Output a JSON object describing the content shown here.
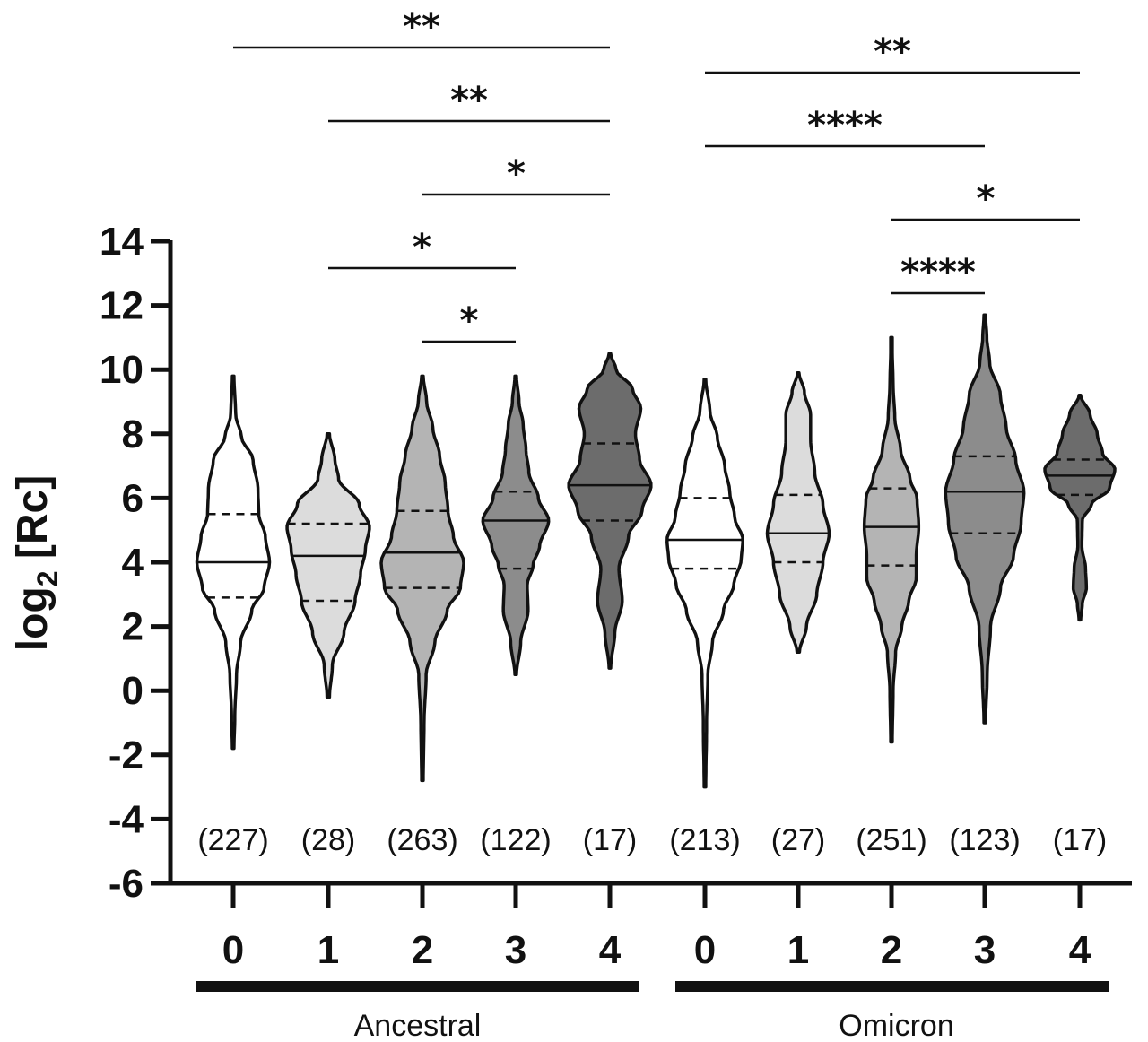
{
  "chart_data": {
    "type": "violin",
    "ylabel": "log",
    "ylabel_sub": "2",
    "ylabel_suffix": " [Rc]",
    "ylim": [
      -6,
      14
    ],
    "yticks": [
      "-6",
      "-4",
      "-2",
      "0",
      "2",
      "4",
      "6",
      "8",
      "10",
      "12",
      "14"
    ],
    "groups": [
      {
        "name": "Ancestral"
      },
      {
        "name": "Omicron"
      }
    ],
    "violins": [
      {
        "group": "Ancestral",
        "category": "0",
        "count": "(227)",
        "fill": "#ffffff",
        "min": -1.8,
        "q1": 2.9,
        "median": 4.0,
        "q3": 5.5,
        "max": 9.8,
        "profile": [
          [
            -1.8,
            0.02
          ],
          [
            -0.8,
            0.04
          ],
          [
            0.5,
            0.08
          ],
          [
            1.5,
            0.18
          ],
          [
            2.5,
            0.45
          ],
          [
            3.2,
            0.75
          ],
          [
            4.0,
            0.88
          ],
          [
            4.8,
            0.78
          ],
          [
            5.5,
            0.62
          ],
          [
            6.3,
            0.6
          ],
          [
            7.2,
            0.48
          ],
          [
            7.9,
            0.2
          ],
          [
            8.6,
            0.06
          ],
          [
            9.8,
            0.02
          ]
        ]
      },
      {
        "group": "Ancestral",
        "category": "1",
        "count": "(28)",
        "fill": "#dcdcdc",
        "min": -0.2,
        "q1": 2.8,
        "median": 4.2,
        "q3": 5.2,
        "max": 8.0,
        "profile": [
          [
            -0.2,
            0.03
          ],
          [
            0.8,
            0.1
          ],
          [
            1.8,
            0.38
          ],
          [
            2.8,
            0.65
          ],
          [
            3.6,
            0.78
          ],
          [
            4.4,
            0.9
          ],
          [
            5.1,
            1.0
          ],
          [
            5.8,
            0.75
          ],
          [
            6.6,
            0.25
          ],
          [
            7.2,
            0.16
          ],
          [
            8.0,
            0.03
          ]
        ]
      },
      {
        "group": "Ancestral",
        "category": "2",
        "count": "(263)",
        "fill": "#b4b4b4",
        "min": -2.8,
        "q1": 3.2,
        "median": 4.3,
        "q3": 5.6,
        "max": 9.8,
        "profile": [
          [
            -2.8,
            0.02
          ],
          [
            -1.0,
            0.04
          ],
          [
            0.5,
            0.09
          ],
          [
            1.5,
            0.3
          ],
          [
            2.5,
            0.6
          ],
          [
            3.2,
            0.92
          ],
          [
            4.0,
            1.0
          ],
          [
            4.8,
            0.75
          ],
          [
            5.6,
            0.62
          ],
          [
            6.5,
            0.55
          ],
          [
            7.3,
            0.42
          ],
          [
            8.2,
            0.25
          ],
          [
            9.0,
            0.1
          ],
          [
            9.8,
            0.02
          ]
        ]
      },
      {
        "group": "Ancestral",
        "category": "3",
        "count": "(122)",
        "fill": "#8c8c8c",
        "min": 0.5,
        "q1": 3.8,
        "median": 5.3,
        "q3": 6.2,
        "max": 9.8,
        "profile": [
          [
            0.5,
            0.02
          ],
          [
            1.5,
            0.12
          ],
          [
            2.5,
            0.3
          ],
          [
            3.3,
            0.28
          ],
          [
            3.9,
            0.42
          ],
          [
            4.5,
            0.58
          ],
          [
            5.3,
            0.8
          ],
          [
            6.0,
            0.55
          ],
          [
            6.8,
            0.32
          ],
          [
            7.5,
            0.25
          ],
          [
            8.3,
            0.18
          ],
          [
            9.0,
            0.08
          ],
          [
            9.8,
            0.02
          ]
        ]
      },
      {
        "group": "Ancestral",
        "category": "4",
        "count": "(17)",
        "fill": "#6c6c6c",
        "min": 0.7,
        "q1": 5.3,
        "median": 6.4,
        "q3": 7.7,
        "max": 10.5,
        "profile": [
          [
            0.7,
            0.02
          ],
          [
            1.8,
            0.12
          ],
          [
            2.8,
            0.3
          ],
          [
            3.8,
            0.22
          ],
          [
            4.8,
            0.45
          ],
          [
            5.6,
            0.78
          ],
          [
            6.4,
            1.0
          ],
          [
            7.2,
            0.72
          ],
          [
            8.0,
            0.62
          ],
          [
            8.8,
            0.75
          ],
          [
            9.4,
            0.55
          ],
          [
            10.0,
            0.15
          ],
          [
            10.5,
            0.02
          ]
        ]
      },
      {
        "group": "Omicron",
        "category": "0",
        "count": "(213)",
        "fill": "#ffffff",
        "min": -3.0,
        "q1": 3.8,
        "median": 4.7,
        "q3": 6.0,
        "max": 9.7,
        "profile": [
          [
            -3.0,
            0.02
          ],
          [
            -1.0,
            0.04
          ],
          [
            0.5,
            0.07
          ],
          [
            1.5,
            0.18
          ],
          [
            2.5,
            0.45
          ],
          [
            3.3,
            0.7
          ],
          [
            4.1,
            0.88
          ],
          [
            4.7,
            0.92
          ],
          [
            5.4,
            0.72
          ],
          [
            6.2,
            0.6
          ],
          [
            7.0,
            0.48
          ],
          [
            7.9,
            0.3
          ],
          [
            8.7,
            0.12
          ],
          [
            9.7,
            0.02
          ]
        ]
      },
      {
        "group": "Omicron",
        "category": "1",
        "count": "(27)",
        "fill": "#dcdcdc",
        "min": 1.2,
        "q1": 4.0,
        "median": 4.9,
        "q3": 6.1,
        "max": 9.9,
        "profile": [
          [
            1.2,
            0.03
          ],
          [
            2.0,
            0.2
          ],
          [
            3.0,
            0.45
          ],
          [
            4.0,
            0.6
          ],
          [
            4.9,
            0.75
          ],
          [
            5.8,
            0.6
          ],
          [
            6.8,
            0.4
          ],
          [
            7.8,
            0.3
          ],
          [
            8.6,
            0.3
          ],
          [
            9.3,
            0.15
          ],
          [
            9.9,
            0.02
          ]
        ]
      },
      {
        "group": "Omicron",
        "category": "2",
        "count": "(251)",
        "fill": "#b4b4b4",
        "min": -1.6,
        "q1": 3.9,
        "median": 5.1,
        "q3": 6.3,
        "max": 11.0,
        "profile": [
          [
            -1.6,
            0.02
          ],
          [
            0.0,
            0.04
          ],
          [
            1.2,
            0.1
          ],
          [
            2.0,
            0.25
          ],
          [
            2.8,
            0.42
          ],
          [
            3.5,
            0.6
          ],
          [
            4.2,
            0.6
          ],
          [
            5.1,
            0.66
          ],
          [
            6.0,
            0.62
          ],
          [
            6.6,
            0.45
          ],
          [
            7.5,
            0.22
          ],
          [
            8.5,
            0.08
          ],
          [
            9.5,
            0.04
          ],
          [
            11.0,
            0.01
          ]
        ]
      },
      {
        "group": "Omicron",
        "category": "3",
        "count": "(123)",
        "fill": "#8c8c8c",
        "min": -1.0,
        "q1": 4.9,
        "median": 6.2,
        "q3": 7.3,
        "max": 11.7,
        "profile": [
          [
            -1.0,
            0.02
          ],
          [
            0.5,
            0.06
          ],
          [
            2.0,
            0.14
          ],
          [
            3.2,
            0.38
          ],
          [
            4.2,
            0.7
          ],
          [
            5.2,
            0.88
          ],
          [
            6.2,
            0.95
          ],
          [
            7.2,
            0.75
          ],
          [
            8.2,
            0.52
          ],
          [
            9.2,
            0.38
          ],
          [
            10.2,
            0.12
          ],
          [
            11.0,
            0.05
          ],
          [
            11.7,
            0.02
          ]
        ]
      },
      {
        "group": "Omicron",
        "category": "4",
        "count": "(17)",
        "fill": "#6c6c6c",
        "min": 2.2,
        "q1": 6.1,
        "median": 6.7,
        "q3": 7.2,
        "max": 9.2,
        "profile": [
          [
            2.2,
            0.02
          ],
          [
            2.7,
            0.06
          ],
          [
            3.2,
            0.16
          ],
          [
            3.8,
            0.14
          ],
          [
            4.5,
            0.05
          ],
          [
            5.3,
            0.06
          ],
          [
            5.8,
            0.28
          ],
          [
            6.3,
            0.72
          ],
          [
            6.9,
            0.85
          ],
          [
            7.4,
            0.55
          ],
          [
            8.0,
            0.42
          ],
          [
            8.6,
            0.25
          ],
          [
            9.2,
            0.02
          ]
        ]
      }
    ],
    "significance": [
      {
        "from": 0,
        "to": 4,
        "label": "**",
        "level": 0
      },
      {
        "from": 1,
        "to": 4,
        "label": "**",
        "level": 1
      },
      {
        "from": 2,
        "to": 4,
        "label": "*",
        "level": 2
      },
      {
        "from": 1,
        "to": 3,
        "label": "*",
        "level": 3
      },
      {
        "from": 2,
        "to": 3,
        "label": "*",
        "level": 4
      },
      {
        "from": 5,
        "to": 9,
        "label": "**",
        "level": 0
      },
      {
        "from": 5,
        "to": 8,
        "label": "****",
        "level": 1
      },
      {
        "from": 7,
        "to": 9,
        "label": "*",
        "level": 2
      },
      {
        "from": 7,
        "to": 8,
        "label": "****",
        "level": 3
      }
    ]
  }
}
